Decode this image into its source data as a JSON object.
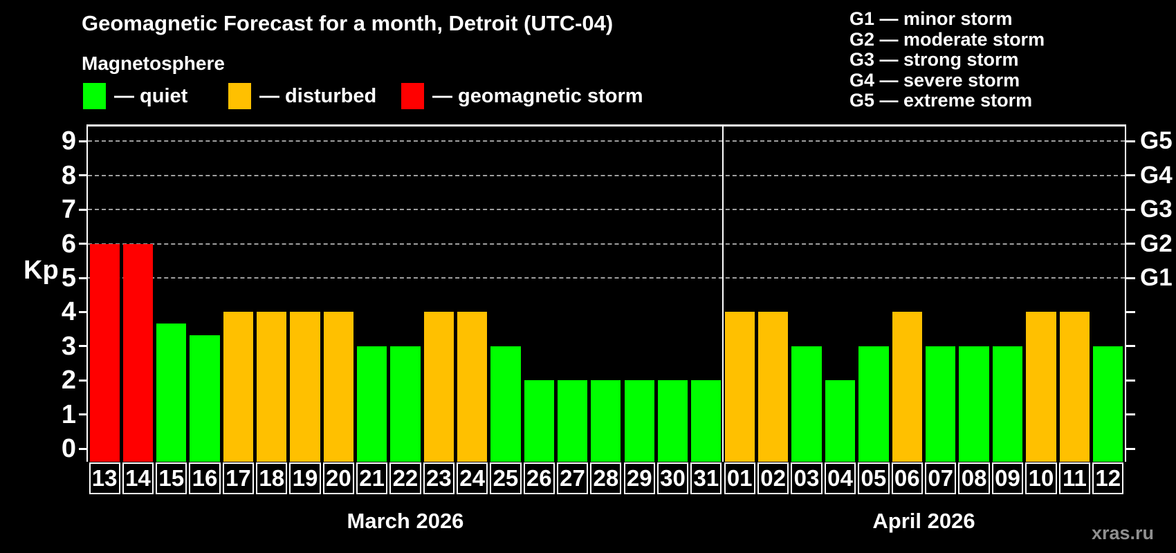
{
  "title": "Geomagnetic Forecast for a month, Detroit (UTC-04)",
  "legend": {
    "heading": "Magnetosphere",
    "items": [
      {
        "name": "quiet",
        "label": "— quiet",
        "color": "#00ff00"
      },
      {
        "name": "disturbed",
        "label": "— disturbed",
        "color": "#ffc000"
      },
      {
        "name": "storm",
        "label": "— geomagnetic storm",
        "color": "#ff0000"
      }
    ]
  },
  "g_legend": [
    "G1 — minor storm",
    "G2 — moderate storm",
    "G3 — strong storm",
    "G4 — severe storm",
    "G5 — extreme storm"
  ],
  "axes": {
    "y_label": "Kp"
  },
  "watermark": "xras.ru",
  "chart_data": {
    "type": "bar",
    "title": "Geomagnetic Forecast for a month, Detroit (UTC-04)",
    "ylabel": "Kp",
    "ylim": [
      0,
      9.4
    ],
    "yticks": [
      0,
      1,
      2,
      3,
      4,
      5,
      6,
      7,
      8,
      9
    ],
    "grid": "dashed horizontal at storm levels only",
    "gridlines_at": [
      5,
      6,
      7,
      8,
      9
    ],
    "right_axis": [
      {
        "kp": 5,
        "label": "G1"
      },
      {
        "kp": 6,
        "label": "G2"
      },
      {
        "kp": 7,
        "label": "G3"
      },
      {
        "kp": 8,
        "label": "G4"
      },
      {
        "kp": 9,
        "label": "G5"
      }
    ],
    "status_colors": {
      "quiet": "#00ff00",
      "disturbed": "#ffc000",
      "storm": "#ff0000"
    },
    "legend_position": "top-left",
    "months": [
      {
        "name": "March 2026",
        "days": [
          {
            "date": "13",
            "kp": 6,
            "status": "storm"
          },
          {
            "date": "14",
            "kp": 6,
            "status": "storm"
          },
          {
            "date": "15",
            "kp": 3.67,
            "status": "quiet"
          },
          {
            "date": "16",
            "kp": 3.33,
            "status": "quiet"
          },
          {
            "date": "17",
            "kp": 4,
            "status": "disturbed"
          },
          {
            "date": "18",
            "kp": 4,
            "status": "disturbed"
          },
          {
            "date": "19",
            "kp": 4,
            "status": "disturbed"
          },
          {
            "date": "20",
            "kp": 4,
            "status": "disturbed"
          },
          {
            "date": "21",
            "kp": 3,
            "status": "quiet"
          },
          {
            "date": "22",
            "kp": 3,
            "status": "quiet"
          },
          {
            "date": "23",
            "kp": 4,
            "status": "disturbed"
          },
          {
            "date": "24",
            "kp": 4,
            "status": "disturbed"
          },
          {
            "date": "25",
            "kp": 3,
            "status": "quiet"
          },
          {
            "date": "26",
            "kp": 2,
            "status": "quiet"
          },
          {
            "date": "27",
            "kp": 2,
            "status": "quiet"
          },
          {
            "date": "28",
            "kp": 2,
            "status": "quiet"
          },
          {
            "date": "29",
            "kp": 2,
            "status": "quiet"
          },
          {
            "date": "30",
            "kp": 2,
            "status": "quiet"
          },
          {
            "date": "31",
            "kp": 2,
            "status": "quiet"
          }
        ]
      },
      {
        "name": "April 2026",
        "days": [
          {
            "date": "01",
            "kp": 4,
            "status": "disturbed"
          },
          {
            "date": "02",
            "kp": 4,
            "status": "disturbed"
          },
          {
            "date": "03",
            "kp": 3,
            "status": "quiet"
          },
          {
            "date": "04",
            "kp": 2,
            "status": "quiet"
          },
          {
            "date": "05",
            "kp": 3,
            "status": "quiet"
          },
          {
            "date": "06",
            "kp": 4,
            "status": "disturbed"
          },
          {
            "date": "07",
            "kp": 3,
            "status": "quiet"
          },
          {
            "date": "08",
            "kp": 3,
            "status": "quiet"
          },
          {
            "date": "09",
            "kp": 3,
            "status": "quiet"
          },
          {
            "date": "10",
            "kp": 4,
            "status": "disturbed"
          },
          {
            "date": "11",
            "kp": 4,
            "status": "disturbed"
          },
          {
            "date": "12",
            "kp": 3,
            "status": "quiet"
          }
        ]
      }
    ]
  }
}
